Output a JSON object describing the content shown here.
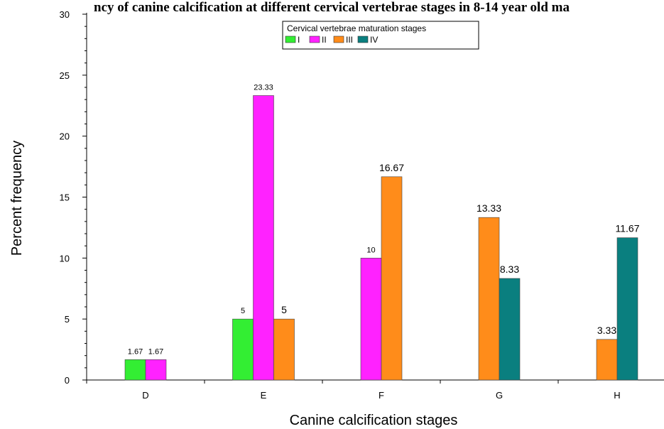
{
  "chart_data": {
    "type": "bar",
    "title": "ncy of canine calcification at different cervical vertebrae stages in 8-14 year old ma",
    "xlabel": "Canine calcification stages",
    "ylabel": "Percent frequency",
    "ylim": [
      0,
      30
    ],
    "yticks": [
      0,
      5,
      10,
      15,
      20,
      25,
      30
    ],
    "categories": [
      "D",
      "E",
      "F",
      "G",
      "H"
    ],
    "legend": {
      "title": "Cervical vertebrae maturation stages",
      "placement": "top-center"
    },
    "series": [
      {
        "name": "I",
        "color": "#33ee33",
        "values": [
          1.67,
          5,
          null,
          null,
          null
        ],
        "labels": [
          "1.67",
          "5",
          "",
          "",
          ""
        ]
      },
      {
        "name": "II",
        "color": "#ff22ff",
        "values": [
          1.67,
          23.33,
          10,
          null,
          null
        ],
        "labels": [
          "1.67",
          "23.33",
          "10",
          "",
          ""
        ]
      },
      {
        "name": "III",
        "color": "#ff8c1a",
        "values": [
          null,
          5,
          16.67,
          13.33,
          3.33
        ],
        "labels": [
          "",
          "5",
          "16.67",
          "13.33",
          "3.33"
        ]
      },
      {
        "name": "IV",
        "color": "#0a7f7f",
        "values": [
          null,
          null,
          null,
          8.33,
          11.67
        ],
        "labels": [
          "",
          "",
          "",
          "8.33",
          "11.67"
        ]
      }
    ],
    "bars": [
      {
        "category": "D",
        "series": "I",
        "value": 1.67,
        "label": "1.67"
      },
      {
        "category": "D",
        "series": "II",
        "value": 1.67,
        "label": "1.67"
      },
      {
        "category": "E",
        "series": "I",
        "value": 5,
        "label": "5"
      },
      {
        "category": "E",
        "series": "II",
        "value": 23.33,
        "label": "23.33"
      },
      {
        "category": "E",
        "series": "III",
        "value": 5,
        "label": "5"
      },
      {
        "category": "F",
        "series": "II",
        "value": 10,
        "label": "10"
      },
      {
        "category": "F",
        "series": "III",
        "value": 16.67,
        "label": "16.67"
      },
      {
        "category": "G",
        "series": "III",
        "value": 13.33,
        "label": "13.33"
      },
      {
        "category": "G",
        "series": "IV",
        "value": 8.33,
        "label": "8.33"
      },
      {
        "category": "H",
        "series": "III",
        "value": 3.33,
        "label": "3.33"
      },
      {
        "category": "H",
        "series": "IV",
        "value": 11.67,
        "label": "11.67"
      }
    ]
  }
}
